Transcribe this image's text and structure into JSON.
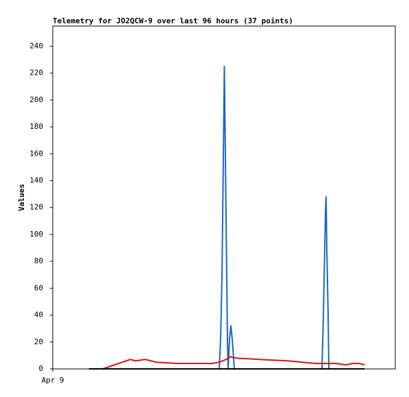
{
  "chart_data": {
    "type": "line",
    "title": "Telemetry for JO2QCW-9 over last 96 hours (37 points)",
    "y_label": "Values",
    "xlim": [
      0,
      500
    ],
    "xticks": [
      {
        "value": 0,
        "label": "Apr 9"
      }
    ],
    "ylim": [
      0,
      255
    ],
    "yticks": [
      0,
      20,
      40,
      60,
      80,
      100,
      120,
      140,
      160,
      180,
      200,
      220,
      240
    ],
    "series": [
      {
        "color": "#1a66c4",
        "x": [
          53,
          243,
          245,
          247,
          248,
          249,
          250,
          250.5,
          251,
          252,
          253,
          254,
          255,
          256,
          258,
          260,
          262,
          265,
          393,
          395,
          396,
          397,
          398,
          399,
          400,
          401,
          402,
          403,
          455
        ],
        "values": [
          0,
          0,
          22,
          68,
          112,
          157,
          202,
          225,
          202,
          157,
          112,
          68,
          22,
          0,
          22,
          32,
          22,
          0,
          0,
          39,
          65,
          90,
          116,
          128,
          90,
          65,
          39,
          0,
          0
        ]
      },
      {
        "color": "#e01010",
        "x": [
          53,
          73,
          113,
          121,
          135,
          151,
          183,
          233,
          243,
          253,
          259,
          268,
          303,
          343,
          383,
          413,
          428,
          438,
          448,
          455
        ],
        "values": [
          0,
          0,
          7,
          6,
          7,
          5,
          4,
          4,
          5,
          7,
          9,
          8,
          7,
          6,
          4,
          4,
          3,
          4,
          4,
          3
        ]
      },
      {
        "color": "#000000",
        "x": [
          53,
          455
        ],
        "values": [
          0,
          0
        ]
      }
    ]
  }
}
